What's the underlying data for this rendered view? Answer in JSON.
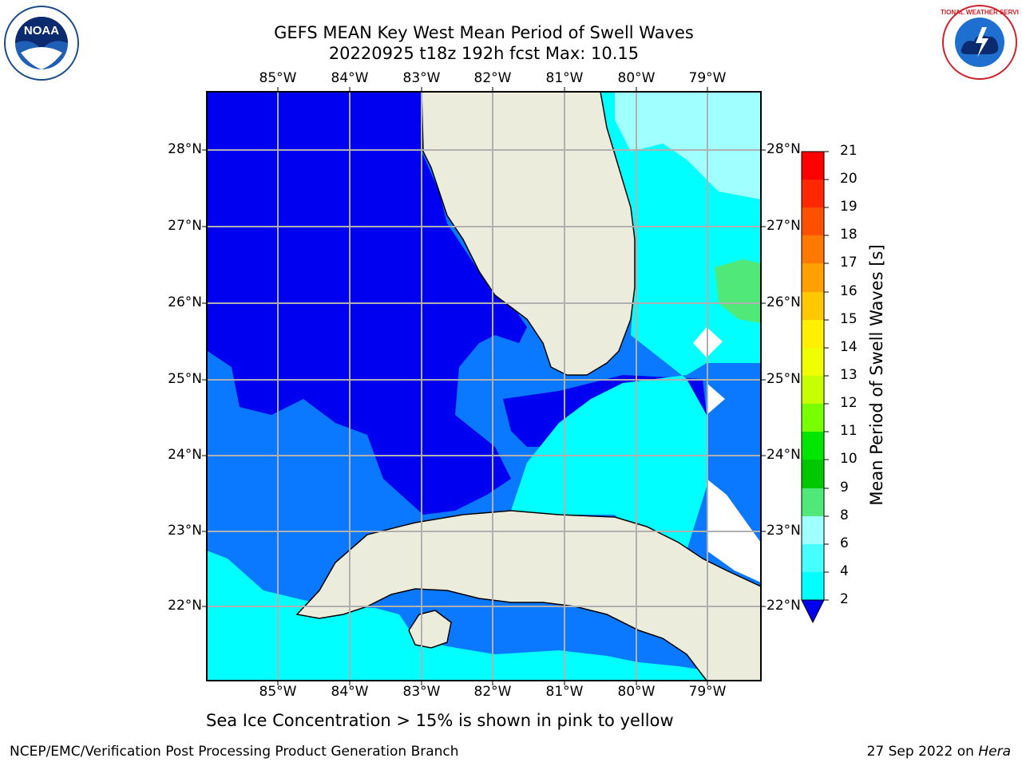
{
  "header": {
    "title_line1": "GEFS MEAN Key West Mean Period of Swell Waves",
    "title_line2": "20220925 t18z 192h fcst   Max: 10.15"
  },
  "map": {
    "lon_labels": [
      "85°W",
      "84°W",
      "83°W",
      "82°W",
      "81°W",
      "80°W",
      "79°W"
    ],
    "lat_labels": [
      "28°N",
      "27°N",
      "26°N",
      "25°N",
      "24°N",
      "23°N",
      "22°N"
    ],
    "colors": {
      "land": "#ececdc",
      "ocean_2_4": "#0000f0",
      "ocean_4_6": "#0a78ff",
      "ocean_6_8": "#00ffff",
      "ocean_8_9": "#46ffff",
      "ocean_9_10": "#a0ffff",
      "ocean_10_11": "#50e878",
      "grid": "#b0b0b0"
    }
  },
  "colorbar": {
    "label": "Mean Period of Swell Waves [s]",
    "ticks": [
      "21",
      "20",
      "19",
      "18",
      "17",
      "16",
      "15",
      "14",
      "13",
      "12",
      "11",
      "10",
      "9",
      "8",
      "6",
      "4",
      "2"
    ],
    "colors": [
      "#ff0000",
      "#ff2800",
      "#ff5000",
      "#ff7800",
      "#ffa000",
      "#ffc800",
      "#fff000",
      "#f0ff00",
      "#c8ff00",
      "#78ff00",
      "#00e600",
      "#00c800",
      "#50e878",
      "#a0ffff",
      "#46ffff",
      "#00ffff",
      "#0a78ff"
    ],
    "extend_color": "#0000f0"
  },
  "logos": {
    "left": "NOAA",
    "right": "NATIONAL WEATHER SERVICE"
  },
  "note": "Sea Ice Concentration > 15% is shown in pink to yellow",
  "footer": {
    "left": "NCEP/EMC/Verification Post Processing Product Generation Branch",
    "right_date": "27 Sep 2022 on ",
    "right_host": "Hera"
  }
}
